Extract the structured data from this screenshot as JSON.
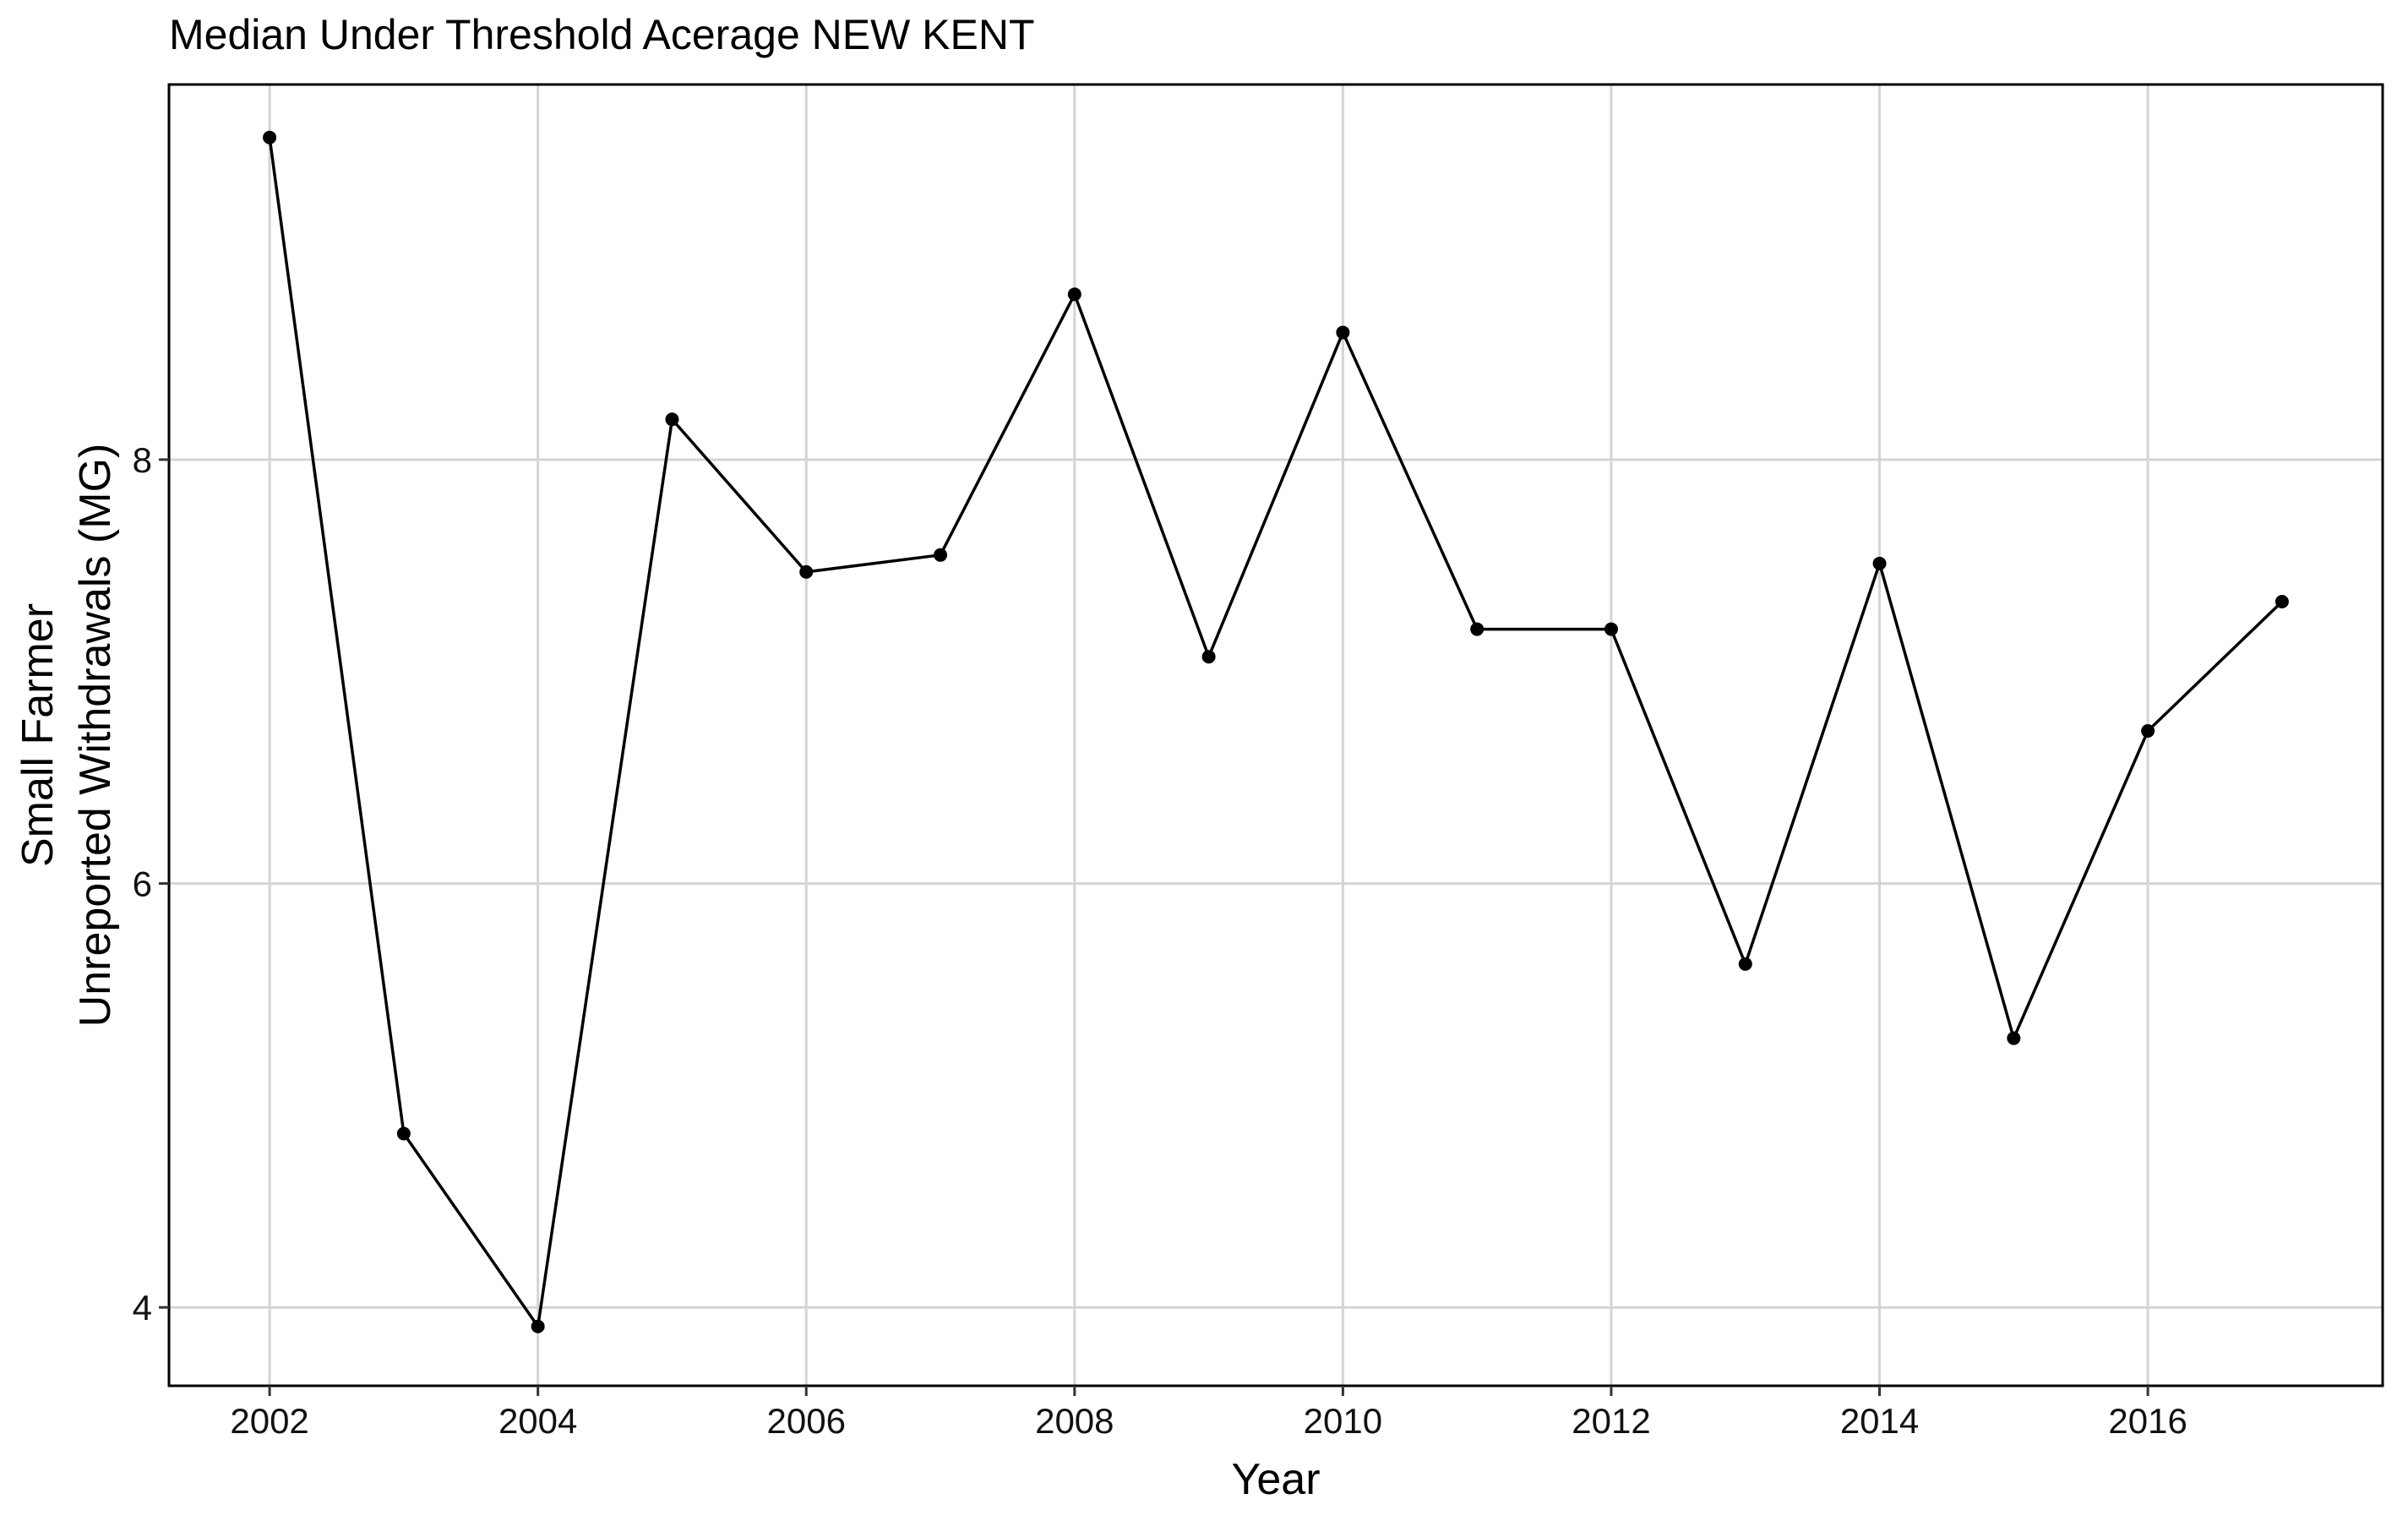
{
  "chart_data": {
    "type": "line",
    "title": "Median Under Threshold Acerage NEW KENT",
    "xlabel": "Year",
    "ylabel_lines": [
      "Small Farmer",
      "Unreported Withdrawals (MG)"
    ],
    "xlim": [
      2001.25,
      2017.75
    ],
    "ylim": [
      3.63,
      9.77
    ],
    "x_ticks": [
      2002,
      2004,
      2006,
      2008,
      2010,
      2012,
      2014,
      2016
    ],
    "y_ticks": [
      4,
      6,
      8
    ],
    "grid": true,
    "series": [
      {
        "color": "#000000",
        "points": [
          {
            "x": 2002,
            "y": 9.52
          },
          {
            "x": 2003,
            "y": 4.82
          },
          {
            "x": 2004,
            "y": 3.91
          },
          {
            "x": 2005,
            "y": 8.19
          },
          {
            "x": 2006,
            "y": 7.47
          },
          {
            "x": 2007,
            "y": 7.55
          },
          {
            "x": 2008,
            "y": 8.78
          },
          {
            "x": 2009,
            "y": 7.07
          },
          {
            "x": 2010,
            "y": 8.6
          },
          {
            "x": 2011,
            "y": 7.2
          },
          {
            "x": 2012,
            "y": 7.2
          },
          {
            "x": 2013,
            "y": 5.62
          },
          {
            "x": 2014,
            "y": 7.51
          },
          {
            "x": 2015,
            "y": 5.27
          },
          {
            "x": 2016,
            "y": 6.72
          },
          {
            "x": 2017,
            "y": 7.33
          }
        ]
      }
    ]
  }
}
